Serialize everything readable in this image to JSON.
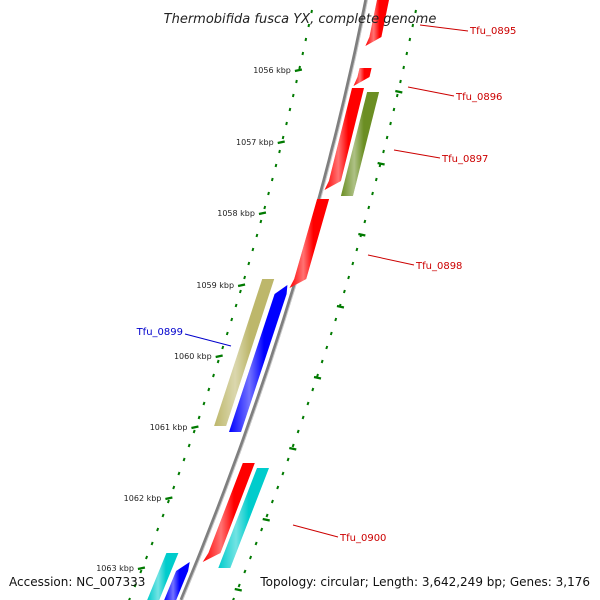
{
  "title": "Thermobifida fusca YX, complete genome",
  "accession_text": "Accession: NC_007333",
  "topology_text": "Topology: circular; Length: 3,642,249 bp; Genes: 3,176",
  "colors": {
    "backbone": "#7f7f7f",
    "tick": "#007a00",
    "gene_label_forward": "#cc0000",
    "gene_label_reverse": "#0000cc"
  },
  "ticks": [
    {
      "label": "1056 kbp"
    },
    {
      "label": "1057 kbp"
    },
    {
      "label": "1058 kbp"
    },
    {
      "label": "1059 kbp"
    },
    {
      "label": "1060 kbp"
    },
    {
      "label": "1061 kbp"
    },
    {
      "label": "1062 kbp"
    },
    {
      "label": "1063 kbp"
    }
  ],
  "genes": [
    {
      "name": "Tfu_0895",
      "strand": "forward",
      "color": "#ff0000"
    },
    {
      "name": "Tfu_0896",
      "strand": "forward",
      "color": "#ff0000"
    },
    {
      "name": "",
      "strand": "forward",
      "color": "#ff0000"
    },
    {
      "name": "Tfu_0897",
      "strand": "forward",
      "color": "#6b8e23"
    },
    {
      "name": "Tfu_0898",
      "strand": "forward",
      "color": "#ff0000"
    },
    {
      "name": "Tfu_0899",
      "strand": "reverse",
      "color": "#bdb76b"
    },
    {
      "name": "",
      "strand": "reverse",
      "color": "#0000ff"
    },
    {
      "name": "",
      "strand": "forward",
      "color": "#ff0000"
    },
    {
      "name": "Tfu_0900",
      "strand": "forward",
      "color": "#00cccc"
    },
    {
      "name": "",
      "strand": "reverse",
      "color": "#00cccc"
    },
    {
      "name": "",
      "strand": "reverse",
      "color": "#0000ff"
    }
  ]
}
